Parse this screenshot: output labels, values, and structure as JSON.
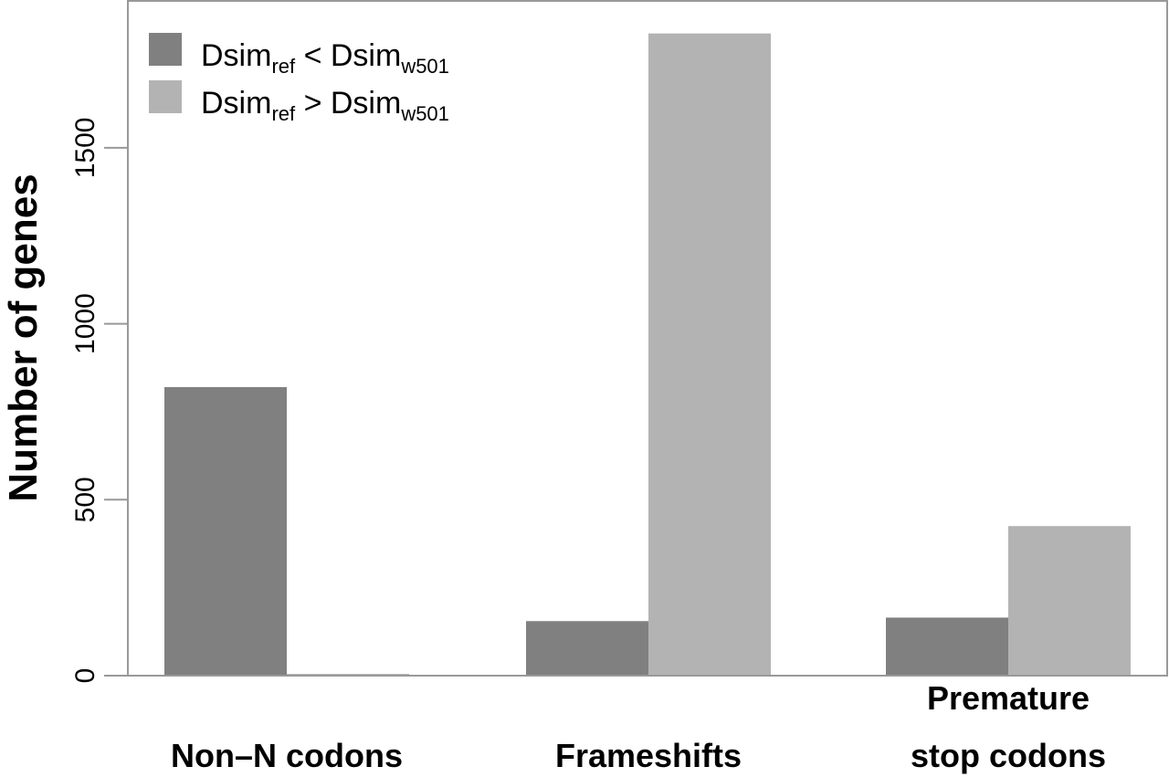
{
  "chart_data": {
    "type": "bar",
    "categories": [
      {
        "lines": [
          "Non–N codons"
        ]
      },
      {
        "lines": [
          "Frameshifts"
        ]
      },
      {
        "lines": [
          "Premature",
          "stop codons"
        ]
      }
    ],
    "series": [
      {
        "name": "Dsim_ref < Dsim_w501",
        "label_main": "Dsim",
        "label_sub1": "ref",
        "label_op": " < ",
        "label_main2": "Dsim",
        "label_sub2": "w501",
        "color": "#808080",
        "values": [
          820,
          155,
          165
        ]
      },
      {
        "name": "Dsim_ref > Dsim_w501",
        "label_main": "Dsim",
        "label_sub1": "ref",
        "label_op": " > ",
        "label_main2": "Dsim",
        "label_sub2": "w501",
        "color": "#b3b3b3",
        "values": [
          5,
          1825,
          425
        ]
      }
    ],
    "title": "",
    "xlabel": "",
    "ylabel": "Number of genes",
    "ylim": [
      0,
      1850
    ],
    "yticks": [
      0,
      500,
      1000,
      1500
    ],
    "grid": false,
    "legend": "top-left"
  }
}
